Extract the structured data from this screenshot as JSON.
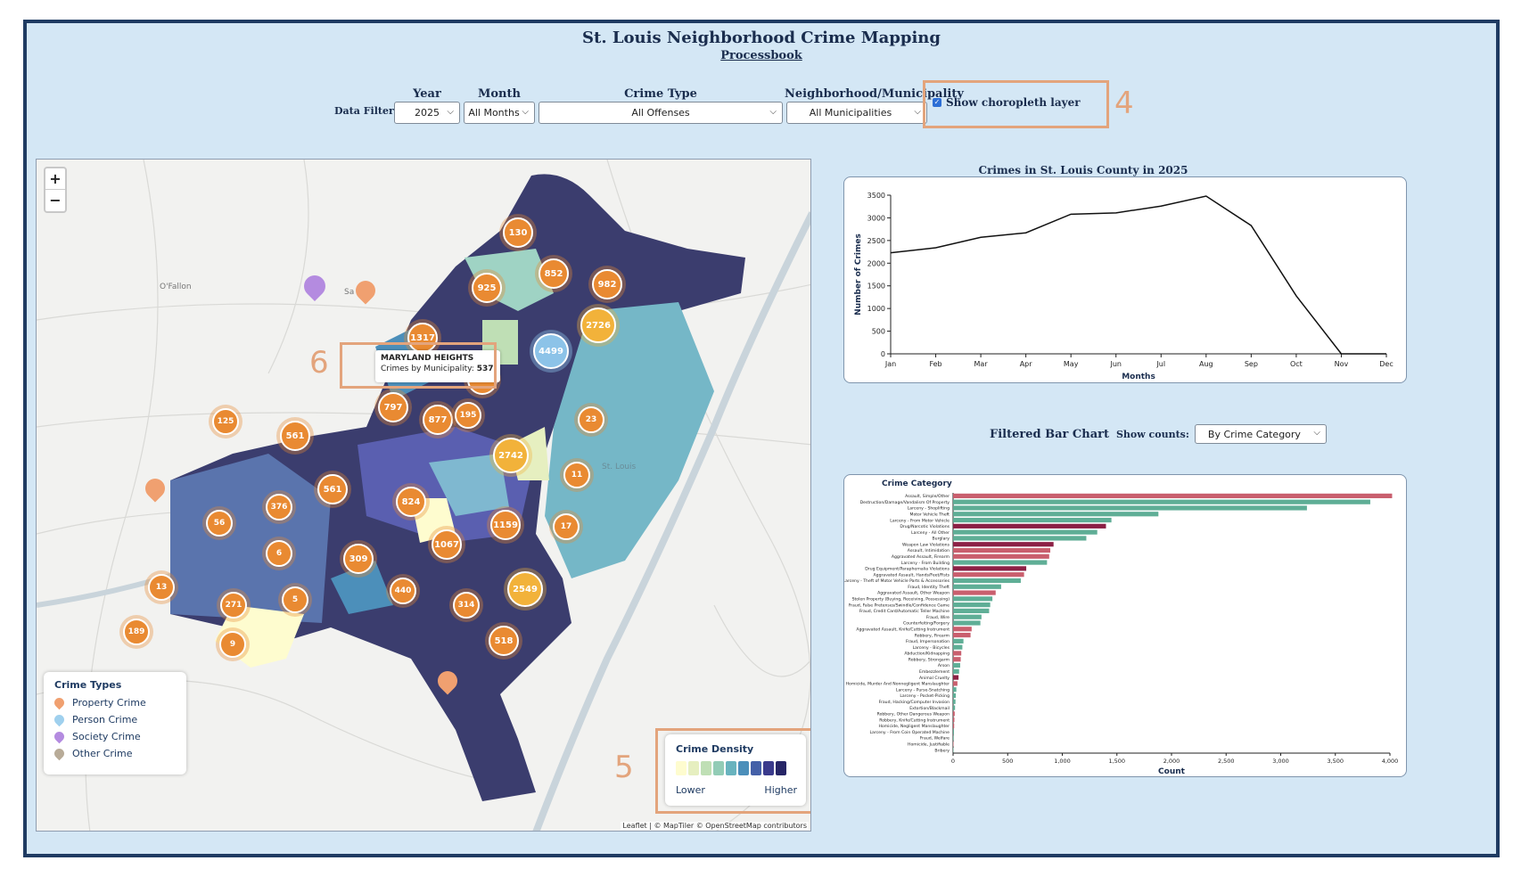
{
  "header": {
    "title": "St. Louis Neighborhood Crime Mapping",
    "link": "Processbook"
  },
  "filters": {
    "label": "Data Filters",
    "year": {
      "label": "Year",
      "value": "2025"
    },
    "month": {
      "label": "Month",
      "value": "All Months"
    },
    "crime_type": {
      "label": "Crime Type",
      "value": "All Offenses"
    },
    "neighborhood": {
      "label": "Neighborhood/Municipality",
      "value": "All Municipalities"
    },
    "choropleth": {
      "label": "Show choropleth layer",
      "checked": true
    }
  },
  "annotations": [
    "4",
    "5",
    "6"
  ],
  "map": {
    "zoom_in": "+",
    "zoom_out": "−",
    "place_labels": [
      "O'Fallon",
      "St. Louis",
      "Sa"
    ],
    "clusters": [
      {
        "v": "130",
        "c": "o"
      },
      {
        "v": "852",
        "c": "o"
      },
      {
        "v": "925",
        "c": "o"
      },
      {
        "v": "982",
        "c": "o"
      },
      {
        "v": "1317",
        "c": "o"
      },
      {
        "v": "2726",
        "c": "y"
      },
      {
        "v": "4499",
        "c": "b"
      },
      {
        "v": "1381",
        "c": "o"
      },
      {
        "v": "797",
        "c": "o"
      },
      {
        "v": "877",
        "c": "o"
      },
      {
        "v": "195",
        "c": "o"
      },
      {
        "v": "23",
        "c": "o"
      },
      {
        "v": "125",
        "c": "o"
      },
      {
        "v": "561",
        "c": "o"
      },
      {
        "v": "2742",
        "c": "y"
      },
      {
        "v": "11",
        "c": "o"
      },
      {
        "v": "561",
        "c": "o"
      },
      {
        "v": "376",
        "c": "o"
      },
      {
        "v": "824",
        "c": "o"
      },
      {
        "v": "56",
        "c": "o"
      },
      {
        "v": "1159",
        "c": "o"
      },
      {
        "v": "17",
        "c": "o"
      },
      {
        "v": "6",
        "c": "o"
      },
      {
        "v": "309",
        "c": "o"
      },
      {
        "v": "1067",
        "c": "o"
      },
      {
        "v": "13",
        "c": "o"
      },
      {
        "v": "440",
        "c": "o"
      },
      {
        "v": "5",
        "c": "o"
      },
      {
        "v": "2549",
        "c": "y"
      },
      {
        "v": "271",
        "c": "o"
      },
      {
        "v": "314",
        "c": "o"
      },
      {
        "v": "189",
        "c": "o"
      },
      {
        "v": "9",
        "c": "o"
      },
      {
        "v": "518",
        "c": "o"
      }
    ],
    "tooltip": {
      "title": "MARYLAND HEIGHTS",
      "label": "Crimes by Municipality:",
      "value": "537"
    },
    "attribution": "Leaflet | © MapTiler © OpenStreetMap contributors",
    "legend_types": {
      "title": "Crime Types",
      "items": [
        {
          "label": "Property Crime",
          "color": "#f0a070"
        },
        {
          "label": "Person Crime",
          "color": "#9fd0ee"
        },
        {
          "label": "Society Crime",
          "color": "#b48be0"
        },
        {
          "label": "Other Crime",
          "color": "#b8ab98"
        }
      ]
    },
    "legend_density": {
      "title": "Crime Density",
      "low": "Lower",
      "high": "Higher",
      "swatches": [
        "#fefccf",
        "#e6efc0",
        "#bfdfb5",
        "#92ccb6",
        "#68b3be",
        "#4c8fba",
        "#4460a8",
        "#3a3a8c",
        "#262566"
      ]
    }
  },
  "line_chart": {
    "title": "Crimes in St. Louis County in 2025",
    "chart_data": {
      "type": "line",
      "x": [
        "Jan",
        "Feb",
        "Mar",
        "Apr",
        "May",
        "Jun",
        "Jul",
        "Aug",
        "Sep",
        "Oct",
        "Nov",
        "Dec"
      ],
      "values": [
        2230,
        2340,
        2570,
        2670,
        3080,
        3110,
        3260,
        3480,
        2830,
        1280,
        0,
        0
      ],
      "xlabel": "Months",
      "ylabel": "Number of Crimes",
      "ylim": [
        0,
        3500
      ],
      "yticks": [
        "0",
        "500",
        "1000",
        "1500",
        "2000",
        "2500",
        "3000",
        "3500"
      ]
    }
  },
  "bar_chart": {
    "title": "Filtered Bar Chart",
    "show_counts_label": "Show counts:",
    "show_counts_value": "By Crime Category",
    "chart_data": {
      "type": "bar",
      "title": "Crime Category",
      "xlabel": "Count",
      "xlim": [
        0,
        4000
      ],
      "xticks": [
        "0",
        "500",
        "1,000",
        "1,500",
        "2,000",
        "2,500",
        "3,000",
        "3,500",
        "4,000"
      ],
      "categories": [
        "Assault, Simple/Other",
        "Destruction/Damage/Vandalism Of Property",
        "Larceny - Shoplifting",
        "Motor Vehicle Theft",
        "Larceny - From Motor Vehicle",
        "Drug/Narcotic Violations",
        "Larceny - All Other",
        "Burglary",
        "Weapon Law Violations",
        "Assault, Intimidation",
        "Aggravated Assault, Firearm",
        "Larceny - From Building",
        "Drug Equipment/Paraphernalia Violations",
        "Aggravated Assault, Hands/Feet/Fists",
        "Larceny - Theft of Motor Vehicle Parts & Accessories",
        "Fraud, Identity Theft",
        "Aggravated Assault, Other Weapon",
        "Stolen Property (Buying, Receiving, Possessing)",
        "Fraud, False Pretenses/Swindle/Confidence Game",
        "Fraud, Credit Card/Automatic Teller Machine",
        "Fraud, Wire",
        "Counterfeiting/Forgery",
        "Aggravated Assault, Knife/Cutting Instrument",
        "Robbery, Firearm",
        "Fraud, Impersonation",
        "Larceny - Bicycles",
        "Abduction/Kidnapping",
        "Robbery, Strongarm",
        "Arson",
        "Embezzlement",
        "Animal Cruelty",
        "Homicide, Murder And Nonnegligent Manslaughter",
        "Larceny - Purse-Snatching",
        "Larceny - Pocket-Picking",
        "Fraud, Hacking/Computer Invasion",
        "Extortion/Blackmail",
        "Robbery, Other Dangerous Weapon",
        "Robbery, Knife/Cutting Instrument",
        "Homicide, Negligent Manslaughter",
        "Larceny - From Coin Operated Machine",
        "Fraud, Welfare",
        "Homicide, Justifiable",
        "Bribery"
      ],
      "values": [
        4020,
        3820,
        3240,
        1880,
        1450,
        1400,
        1320,
        1220,
        920,
        890,
        880,
        860,
        670,
        650,
        620,
        440,
        390,
        360,
        340,
        330,
        260,
        250,
        170,
        160,
        95,
        85,
        75,
        70,
        65,
        55,
        50,
        40,
        30,
        25,
        22,
        18,
        15,
        12,
        10,
        8,
        6,
        4,
        3
      ],
      "groups": [
        "person",
        "property",
        "property",
        "property",
        "property",
        "society",
        "property",
        "property",
        "society",
        "person",
        "person",
        "property",
        "society",
        "person",
        "property",
        "property",
        "person",
        "property",
        "property",
        "property",
        "property",
        "property",
        "person",
        "person",
        "property",
        "property",
        "person",
        "person",
        "property",
        "property",
        "society",
        "person",
        "property",
        "property",
        "property",
        "property",
        "person",
        "person",
        "person",
        "property",
        "property",
        "person",
        "property"
      ],
      "colors": {
        "person": "#c95f6e",
        "property": "#5fae96",
        "society": "#8c2045"
      }
    }
  }
}
